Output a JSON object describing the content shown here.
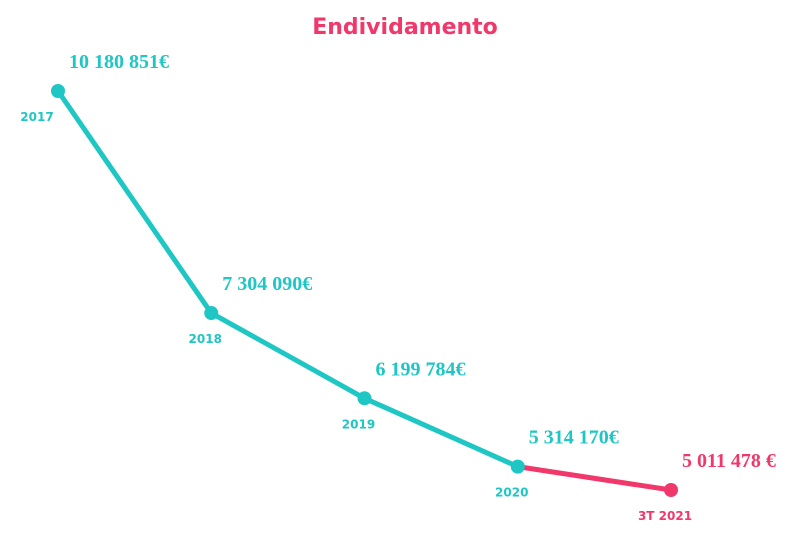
{
  "chart_data": {
    "type": "line",
    "title": "Endividamento",
    "title_color": "#f0386b",
    "categories": [
      "2017",
      "2018",
      "2019",
      "2020",
      "3T 2021"
    ],
    "values": [
      10180851,
      7304090,
      6199784,
      5314170,
      5011478
    ],
    "value_labels": [
      "10 180 851€",
      "7 304 090€",
      "6 199 784€",
      "5 314 170€",
      "5 011 478 €"
    ],
    "colors": [
      "#1ec6c4",
      "#1ec6c4",
      "#1ec6c4",
      "#1ec6c4",
      "#f0386b"
    ]
  }
}
